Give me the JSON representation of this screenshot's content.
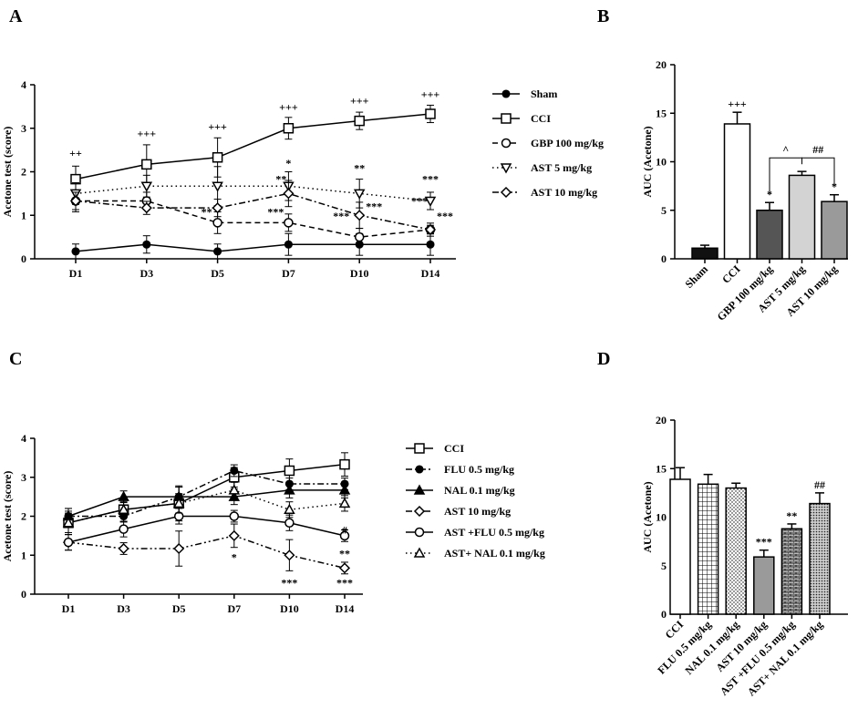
{
  "chart_data": [
    {
      "panel": "A",
      "type": "line",
      "ylabel": "Acetone test (score)",
      "xlabel": "",
      "categories": [
        "D1",
        "D3",
        "D5",
        "D7",
        "D10",
        "D14"
      ],
      "ylim": [
        0,
        4
      ],
      "yticks": [
        0,
        1,
        2,
        3,
        4
      ],
      "legend_position": "right",
      "series": [
        {
          "name": "Sham",
          "marker": "filled-circle",
          "dash": "solid",
          "values": [
            0.17,
            0.33,
            0.17,
            0.33,
            0.33,
            0.33
          ],
          "errors": [
            0.17,
            0.2,
            0.17,
            0.25,
            0.25,
            0.25
          ]
        },
        {
          "name": "CCI",
          "marker": "square",
          "dash": "solid",
          "values": [
            1.83,
            2.17,
            2.33,
            3.0,
            3.17,
            3.33
          ],
          "errors": [
            0.3,
            0.45,
            0.45,
            0.25,
            0.2,
            0.2
          ]
        },
        {
          "name": "GBP 100 mg/kg",
          "marker": "open-circle",
          "dash": "dashed",
          "values": [
            1.33,
            1.33,
            0.83,
            0.83,
            0.5,
            0.67
          ],
          "errors": [
            0.25,
            0.2,
            0.25,
            0.2,
            0.2,
            0.15
          ]
        },
        {
          "name": "AST 5 mg/kg",
          "marker": "down-triangle",
          "dash": "dotted",
          "values": [
            1.5,
            1.67,
            1.67,
            1.67,
            1.5,
            1.33
          ],
          "errors": [
            0.25,
            0.25,
            0.45,
            0.33,
            0.33,
            0.2
          ]
        },
        {
          "name": "AST 10 mg/kg",
          "marker": "diamond",
          "dash": "dashdot",
          "values": [
            1.33,
            1.17,
            1.17,
            1.5,
            1.0,
            0.67
          ],
          "errors": [
            0.2,
            0.15,
            0.2,
            0.3,
            0.3,
            0.1
          ]
        }
      ],
      "annotations": [
        {
          "text": "++",
          "cat": 0,
          "y": 2.35
        },
        {
          "text": "+++",
          "cat": 1,
          "y": 2.8
        },
        {
          "text": "+++",
          "cat": 2,
          "y": 2.95
        },
        {
          "text": "+++",
          "cat": 3,
          "y": 3.4
        },
        {
          "text": "+++",
          "cat": 4,
          "y": 3.55
        },
        {
          "text": "+++",
          "cat": 5,
          "y": 3.7
        },
        {
          "text": "*",
          "cat": 3,
          "y": 2.12
        },
        {
          "text": "**",
          "cat": 4,
          "y": 2.0
        },
        {
          "text": "***",
          "cat": 5,
          "y": 1.75
        },
        {
          "text": "**",
          "cat": 2,
          "y": 1.0,
          "dx": -12
        },
        {
          "text": "**",
          "cat": 3,
          "y": 1.75,
          "dx": -8
        },
        {
          "text": "***",
          "cat": 3,
          "y": 1.0,
          "dx": -14
        },
        {
          "text": "***",
          "cat": 4,
          "y": 1.12,
          "dx": 16
        },
        {
          "text": "***",
          "cat": 4,
          "y": 0.9,
          "dx": -20
        },
        {
          "text": "***",
          "cat": 5,
          "y": 1.25,
          "dx": -12
        },
        {
          "text": "***",
          "cat": 5,
          "y": 0.9,
          "dx": 16
        }
      ]
    },
    {
      "panel": "B",
      "type": "bar",
      "ylabel": "AUC (Acetone)",
      "categories": [
        "Sham",
        "CCI",
        "GBP 100 mg/kg",
        "AST 5 mg/kg",
        "AST 10 mg/kg"
      ],
      "values": [
        1.1,
        13.9,
        5.0,
        8.6,
        5.9
      ],
      "errors": [
        0.3,
        1.2,
        0.8,
        0.4,
        0.7
      ],
      "fills": [
        "#111111",
        "#ffffff",
        "#555555",
        "#d3d3d3",
        "#9a9a9a"
      ],
      "ylim": [
        0,
        20
      ],
      "yticks": [
        0,
        5,
        10,
        15,
        20
      ],
      "labels": [
        "",
        "+++",
        "*",
        "",
        "*"
      ],
      "comparisons": [
        {
          "from": 2,
          "to": 3,
          "text": "^"
        },
        {
          "from": 3,
          "to": 4,
          "text": "##"
        }
      ]
    },
    {
      "panel": "C",
      "type": "line",
      "ylabel": "Acetone test (score)",
      "categories": [
        "D1",
        "D3",
        "D5",
        "D7",
        "D10",
        "D14"
      ],
      "ylim": [
        0,
        4
      ],
      "yticks": [
        0,
        1,
        2,
        3,
        4
      ],
      "legend_position": "right",
      "series": [
        {
          "name": "CCI",
          "marker": "square",
          "dash": "solid",
          "values": [
            1.83,
            2.17,
            2.33,
            3.0,
            3.17,
            3.33
          ],
          "errors": [
            0.3,
            0.3,
            0.45,
            0.25,
            0.3,
            0.3
          ]
        },
        {
          "name": "FLU 0.5 mg/kg",
          "marker": "filled-circle",
          "dash": "dashdot",
          "values": [
            2.0,
            2.0,
            2.5,
            3.17,
            2.83,
            2.83
          ],
          "errors": [
            0.2,
            0.15,
            0.25,
            0.15,
            0.15,
            0.15
          ]
        },
        {
          "name": "NAL 0.1 mg/kg",
          "marker": "filled-triangle",
          "dash": "solid",
          "values": [
            2.0,
            2.5,
            2.5,
            2.5,
            2.67,
            2.67
          ],
          "errors": [
            0.2,
            0.15,
            0.25,
            0.2,
            0.2,
            0.2
          ]
        },
        {
          "name": "AST 10 mg/kg",
          "marker": "diamond",
          "dash": "dashdotdot",
          "values": [
            1.33,
            1.17,
            1.17,
            1.5,
            1.0,
            0.67
          ],
          "errors": [
            0.2,
            0.15,
            0.45,
            0.3,
            0.4,
            0.15
          ]
        },
        {
          "name": "AST +FLU 0.5 mg/kg",
          "marker": "open-circle",
          "dash": "solid",
          "values": [
            1.33,
            1.67,
            2.0,
            2.0,
            1.83,
            1.5
          ],
          "errors": [
            0.2,
            0.2,
            0.2,
            0.15,
            0.2,
            0.15
          ]
        },
        {
          "name": "AST+ NAL 0.1 mg/kg",
          "marker": "up-triangle",
          "dash": "dotted",
          "values": [
            1.83,
            2.17,
            2.33,
            2.67,
            2.17,
            2.33
          ],
          "errors": [
            0.25,
            0.2,
            0.25,
            0.2,
            0.2,
            0.2
          ]
        }
      ],
      "annotations": [
        {
          "text": "*",
          "cat": 3,
          "y": 0.85
        },
        {
          "text": "***",
          "cat": 4,
          "y": 0.2
        },
        {
          "text": "***",
          "cat": 5,
          "y": 0.2
        },
        {
          "text": "**",
          "cat": 5,
          "y": 0.95
        },
        {
          "text": "#",
          "cat": 5,
          "y": 1.55
        }
      ]
    },
    {
      "panel": "D",
      "type": "bar",
      "ylabel": "AUC (Acetone)",
      "categories": [
        "CCI",
        "FLU 0.5 mg/kg",
        "NAL 0.1 mg/kg",
        "AST 10 mg/kg",
        "AST +FLU 0.5 mg/kg",
        "AST+ NAL 0.1 mg/kg"
      ],
      "values": [
        13.9,
        13.4,
        13.0,
        5.9,
        8.8,
        11.4
      ],
      "errors": [
        1.2,
        1.0,
        0.5,
        0.7,
        0.5,
        1.1
      ],
      "fills": [
        "#ffffff",
        "pattern-grid",
        "pattern-dots",
        "#9a9a9a",
        "pattern-brick",
        "pattern-dense"
      ],
      "ylim": [
        0,
        20
      ],
      "yticks": [
        0,
        5,
        10,
        15,
        20
      ],
      "labels": [
        "",
        "",
        "",
        "***",
        "**",
        "##"
      ]
    }
  ],
  "panels": {
    "a": "A",
    "b": "B",
    "c": "C",
    "d": "D"
  }
}
